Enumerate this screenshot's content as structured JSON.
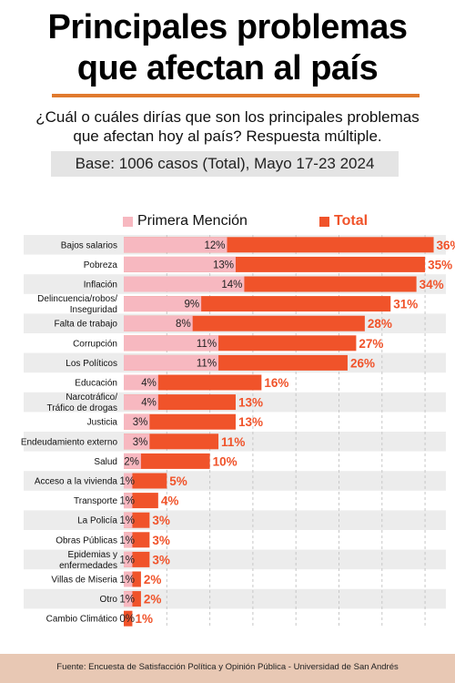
{
  "header": {
    "title_line1": "Principales problemas",
    "title_line2": "que afectan al país",
    "question_line1": "¿Cuál o cuáles dirías que son los principales problemas",
    "question_line2": "que afectan hoy al país? Respuesta múltiple.",
    "base": "Base: 1006 casos (Total), Mayo 17-23 2024"
  },
  "legend": {
    "first_mention": "Primera Mención",
    "total": "Total"
  },
  "colors": {
    "first_mention": "#f7b8c0",
    "total": "#f0532a",
    "row_stripe": "#ececec",
    "accent_rule": "#e07a2e",
    "footer_bg": "#e8c8b4"
  },
  "chart_data": {
    "type": "bar",
    "orientation": "horizontal",
    "value_suffix": "%",
    "categories": [
      [
        "Bajos salarios"
      ],
      [
        "Pobreza"
      ],
      [
        "Inflación"
      ],
      [
        "Delincuencia/robos/",
        "Inseguridad"
      ],
      [
        "Falta de trabajo"
      ],
      [
        "Corrupción"
      ],
      [
        "Los Políticos"
      ],
      [
        "Educación"
      ],
      [
        "Narcotráfico/",
        "Tráfico de drogas"
      ],
      [
        "Justicia"
      ],
      [
        "Endeudamiento externo"
      ],
      [
        "Salud"
      ],
      [
        "Acceso a la vivienda"
      ],
      [
        "Transporte"
      ],
      [
        "La Policía"
      ],
      [
        "Obras Públicas"
      ],
      [
        "Epidemias y",
        "enfermedades"
      ],
      [
        "Villas de Miseria"
      ],
      [
        "Otro"
      ],
      [
        "Cambio Climático"
      ]
    ],
    "series": [
      {
        "name": "Primera Mención",
        "values": [
          12,
          13,
          14,
          9,
          8,
          11,
          11,
          4,
          4,
          3,
          3,
          2,
          1,
          1,
          1,
          1,
          1,
          1,
          1,
          0
        ]
      },
      {
        "name": "Total",
        "values": [
          36,
          35,
          34,
          31,
          28,
          27,
          26,
          16,
          13,
          13,
          11,
          10,
          5,
          4,
          3,
          3,
          3,
          2,
          2,
          1
        ]
      }
    ],
    "xlim": [
      0,
      37
    ],
    "grid": true,
    "legend_position": "top"
  },
  "footer": {
    "source": "Fuente: Encuesta de Satisfacción Política y Opinión Pública - Universidad de San Andrés"
  }
}
